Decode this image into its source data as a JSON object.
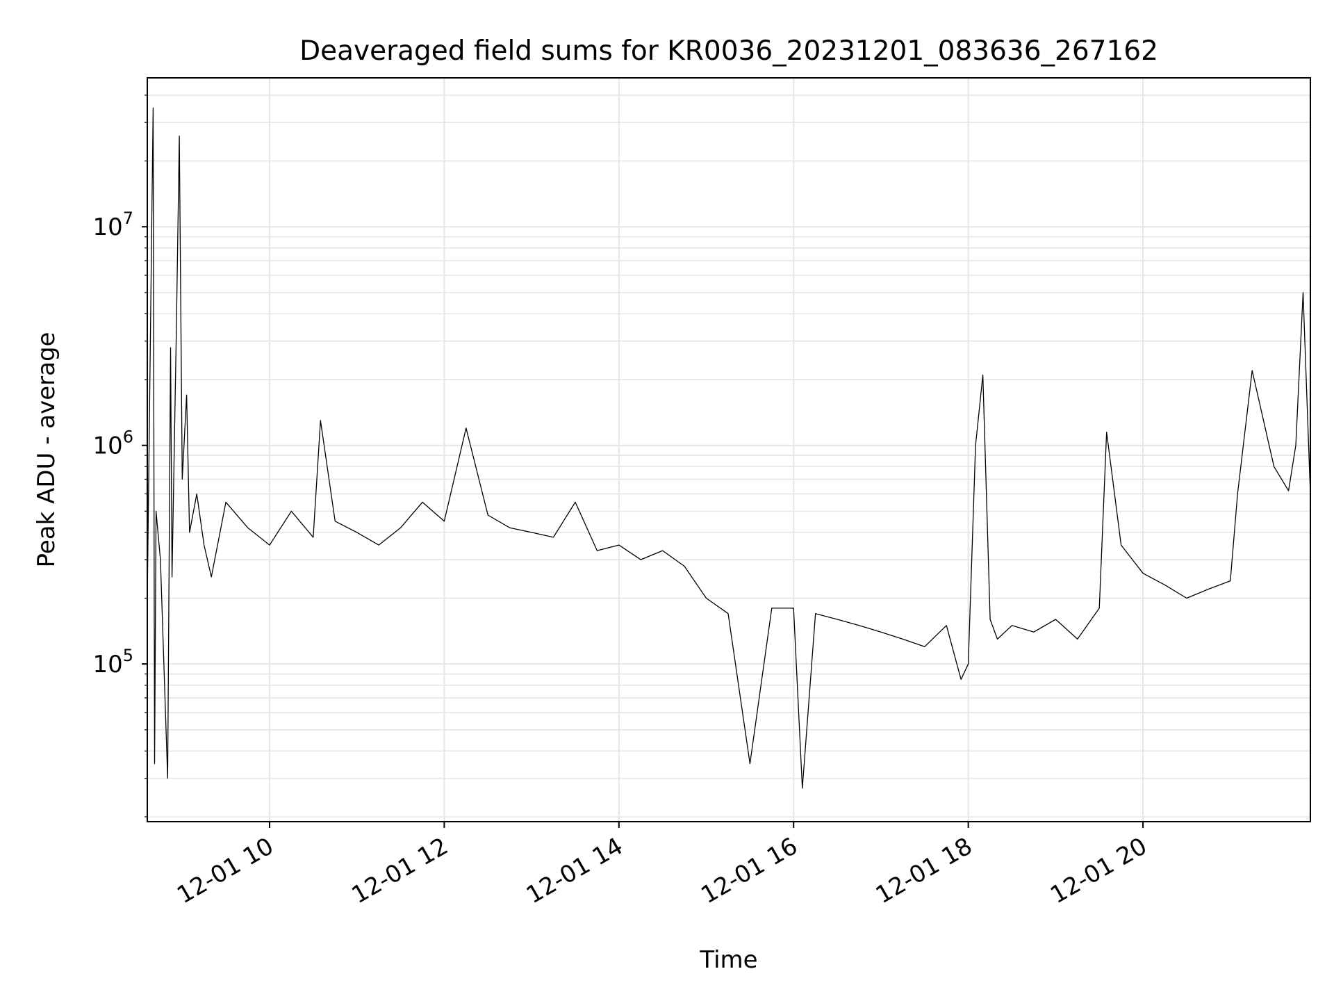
{
  "chart_data": {
    "type": "line",
    "title": "Deaveraged field sums for KR0036_20231201_083636_267162",
    "xlabel": "Time",
    "ylabel": "Peak ADU - average",
    "yscale": "log",
    "grid": true,
    "line_color": "#000000",
    "grid_color": "#e6e6e6",
    "xlim": [
      "2023-12-01 08:36",
      "2023-12-01 21:55"
    ],
    "ylim": [
      19000,
      48000000
    ],
    "x_ticks": [
      {
        "t": "2023-12-01 10:00",
        "label": "12-01 10"
      },
      {
        "t": "2023-12-01 12:00",
        "label": "12-01 12"
      },
      {
        "t": "2023-12-01 14:00",
        "label": "12-01 14"
      },
      {
        "t": "2023-12-01 16:00",
        "label": "12-01 16"
      },
      {
        "t": "2023-12-01 18:00",
        "label": "12-01 18"
      },
      {
        "t": "2023-12-01 20:00",
        "label": "12-01 20"
      }
    ],
    "y_ticks": [
      {
        "value": 100000,
        "base": "10",
        "exp": "5"
      },
      {
        "value": 1000000,
        "base": "10",
        "exp": "6"
      },
      {
        "value": 10000000,
        "base": "10",
        "exp": "7"
      }
    ],
    "series": [
      {
        "x": [
          "2023-12-01 08:36",
          "2023-12-01 08:40",
          "2023-12-01 08:41",
          "2023-12-01 08:42",
          "2023-12-01 08:45",
          "2023-12-01 08:50",
          "2023-12-01 08:52",
          "2023-12-01 08:53",
          "2023-12-01 08:56",
          "2023-12-01 08:58",
          "2023-12-01 09:00",
          "2023-12-01 09:03",
          "2023-12-01 09:05",
          "2023-12-01 09:10",
          "2023-12-01 09:15",
          "2023-12-01 09:20",
          "2023-12-01 09:30",
          "2023-12-01 09:45",
          "2023-12-01 10:00",
          "2023-12-01 10:15",
          "2023-12-01 10:30",
          "2023-12-01 10:35",
          "2023-12-01 10:45",
          "2023-12-01 11:00",
          "2023-12-01 11:15",
          "2023-12-01 11:30",
          "2023-12-01 11:45",
          "2023-12-01 12:00",
          "2023-12-01 12:15",
          "2023-12-01 12:30",
          "2023-12-01 12:45",
          "2023-12-01 13:00",
          "2023-12-01 13:15",
          "2023-12-01 13:30",
          "2023-12-01 13:45",
          "2023-12-01 14:00",
          "2023-12-01 14:15",
          "2023-12-01 14:30",
          "2023-12-01 14:45",
          "2023-12-01 15:00",
          "2023-12-01 15:15",
          "2023-12-01 15:30",
          "2023-12-01 15:45",
          "2023-12-01 16:00",
          "2023-12-01 16:06",
          "2023-12-01 16:15",
          "2023-12-01 16:30",
          "2023-12-01 16:45",
          "2023-12-01 17:00",
          "2023-12-01 17:15",
          "2023-12-01 17:30",
          "2023-12-01 17:45",
          "2023-12-01 17:55",
          "2023-12-01 18:00",
          "2023-12-01 18:05",
          "2023-12-01 18:10",
          "2023-12-01 18:15",
          "2023-12-01 18:20",
          "2023-12-01 18:30",
          "2023-12-01 18:45",
          "2023-12-01 19:00",
          "2023-12-01 19:15",
          "2023-12-01 19:30",
          "2023-12-01 19:35",
          "2023-12-01 19:45",
          "2023-12-01 20:00",
          "2023-12-01 20:15",
          "2023-12-01 20:30",
          "2023-12-01 20:45",
          "2023-12-01 21:00",
          "2023-12-01 21:05",
          "2023-12-01 21:15",
          "2023-12-01 21:30",
          "2023-12-01 21:40",
          "2023-12-01 21:45",
          "2023-12-01 21:50",
          "2023-12-01 21:55"
        ],
        "y": [
          200000,
          35000000,
          35000,
          500000,
          300000,
          30000,
          2800000,
          250000,
          3500000,
          26000000,
          700000,
          1700000,
          400000,
          600000,
          350000,
          250000,
          550000,
          420000,
          350000,
          500000,
          380000,
          1300000,
          450000,
          400000,
          350000,
          420000,
          550000,
          450000,
          1200000,
          480000,
          420000,
          400000,
          380000,
          550000,
          330000,
          350000,
          300000,
          330000,
          280000,
          200000,
          170000,
          35000,
          180000,
          180000,
          27000,
          170000,
          160000,
          150000,
          140000,
          130000,
          120000,
          150000,
          85000,
          100000,
          1000000,
          2100000,
          160000,
          130000,
          150000,
          140000,
          160000,
          130000,
          180000,
          1150000,
          350000,
          260000,
          230000,
          200000,
          220000,
          240000,
          600000,
          2200000,
          800000,
          620000,
          1000000,
          5000000,
          600000
        ]
      }
    ]
  }
}
